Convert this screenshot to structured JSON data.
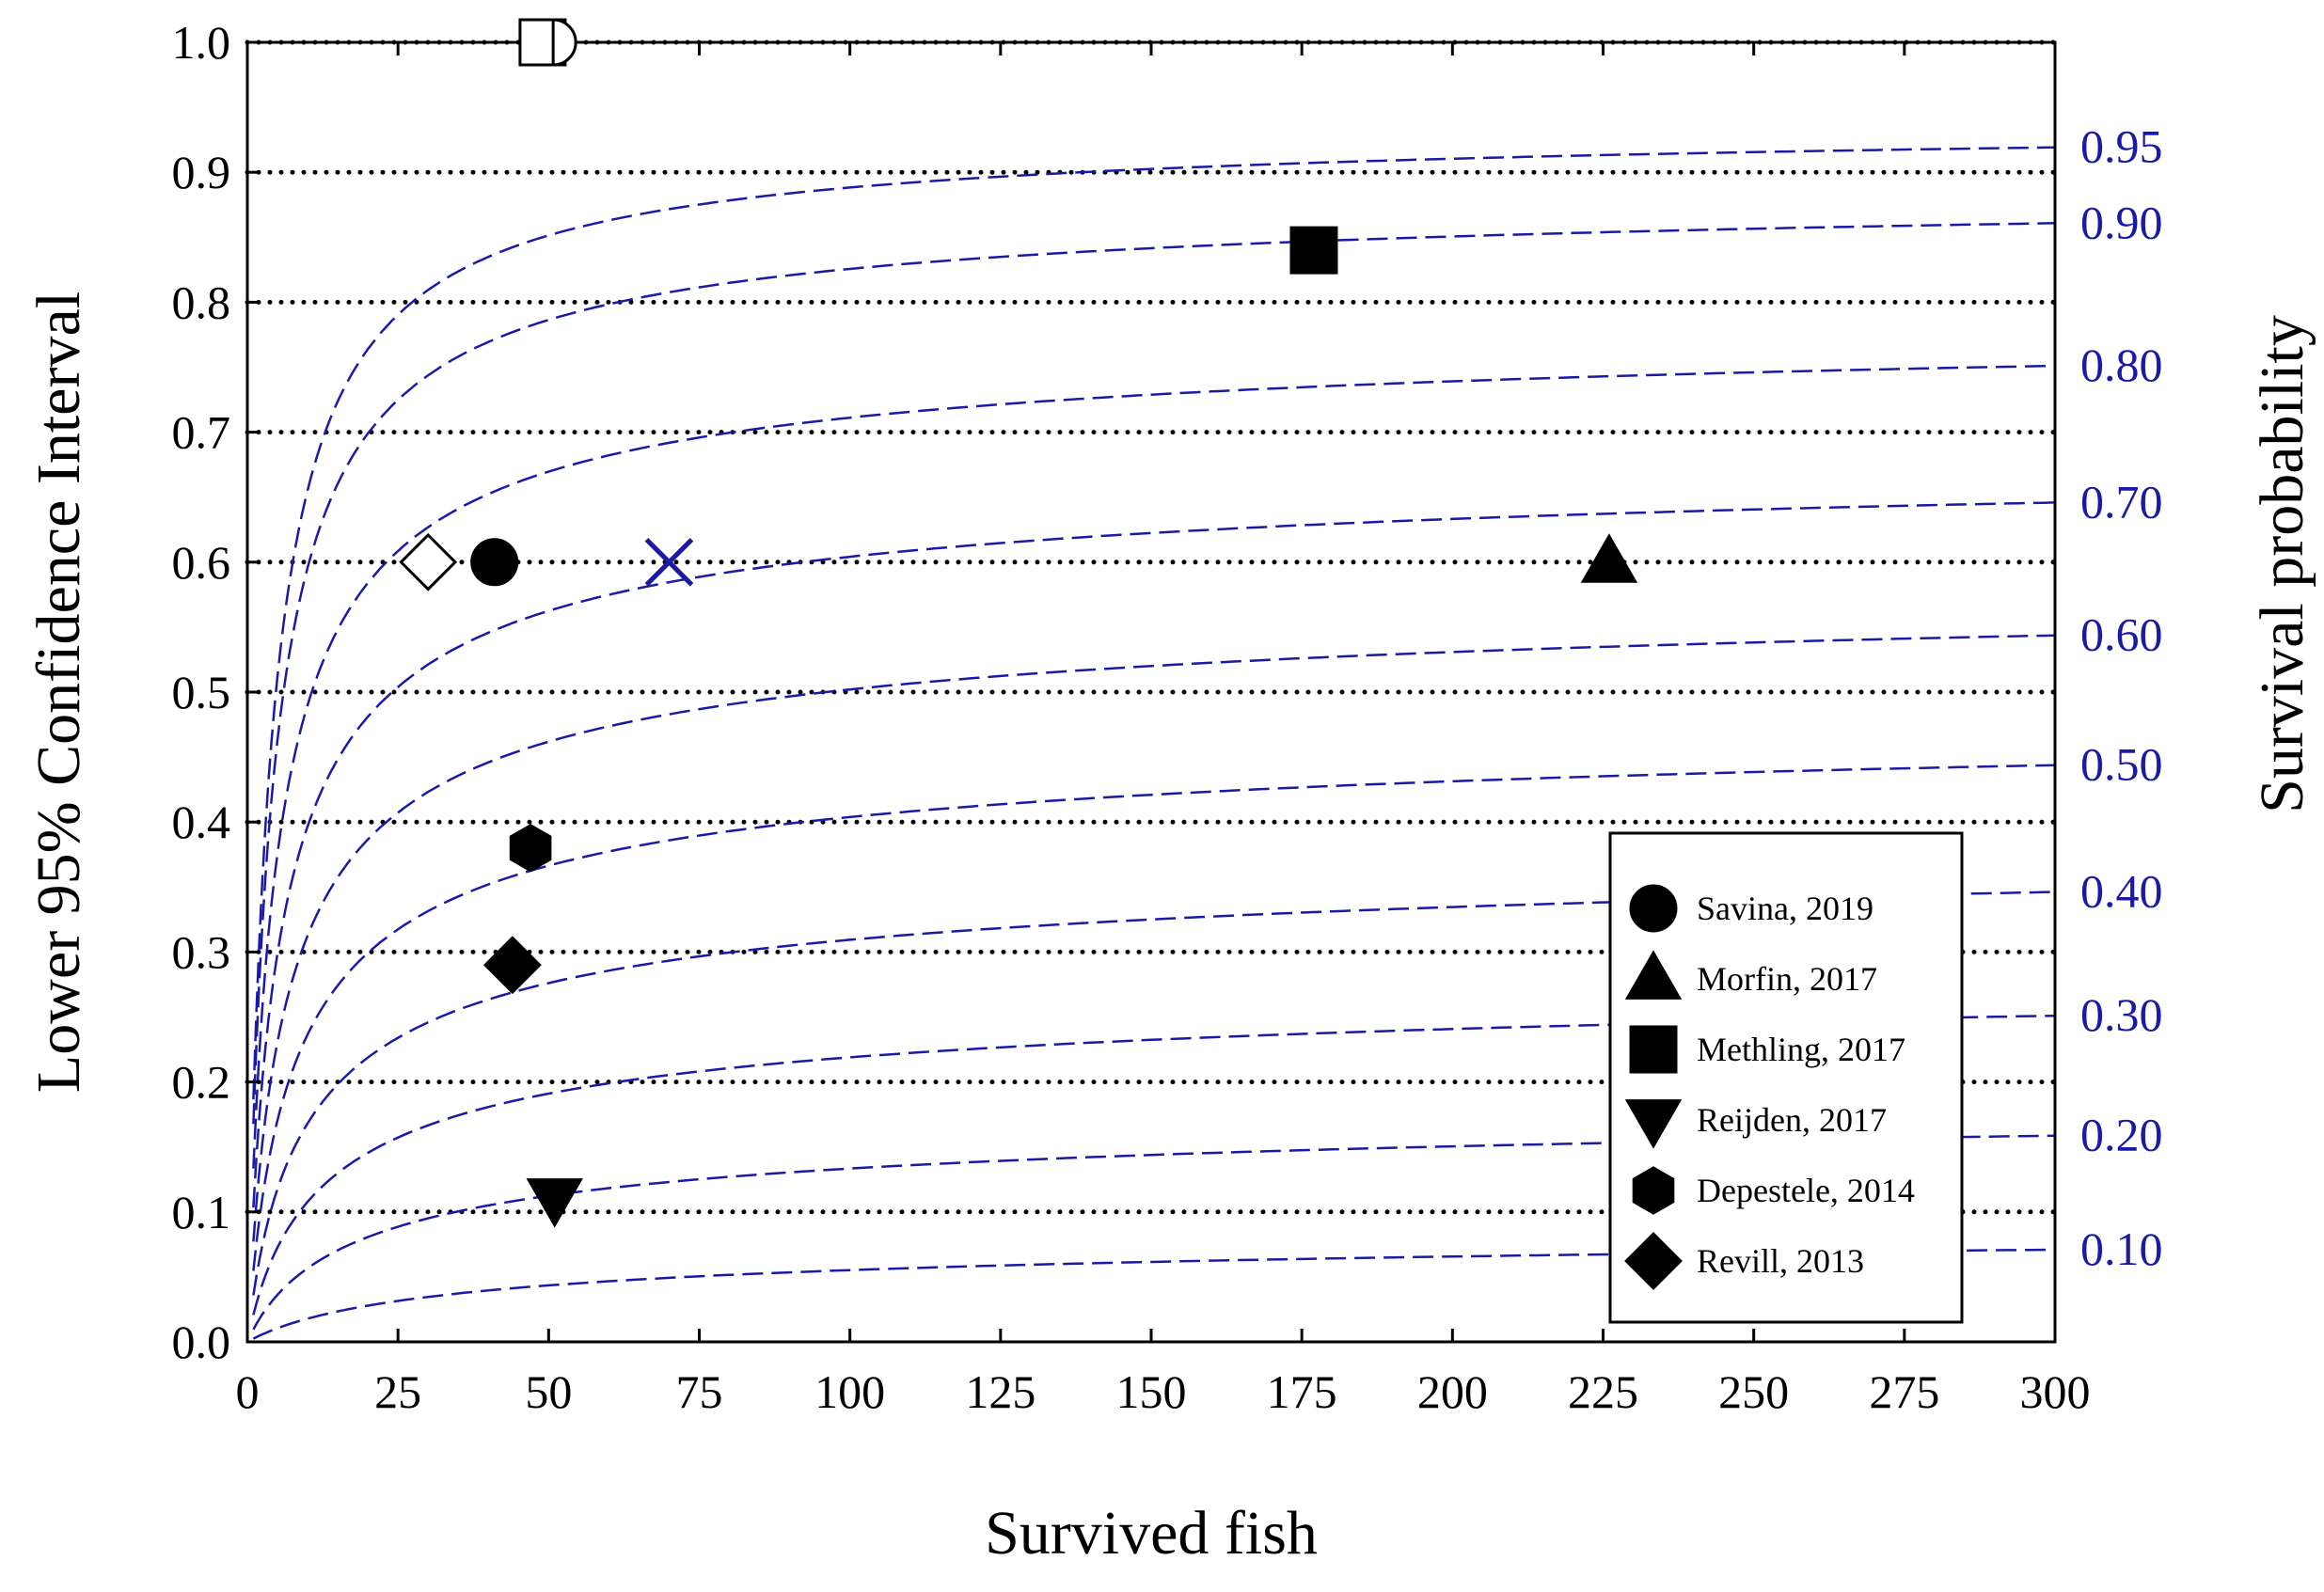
{
  "chart_data": {
    "type": "line",
    "title": "",
    "xlabel": "Survived fish",
    "ylabel": "Lower 95% Confidence Interval",
    "y2label": "Survival probability",
    "xlim": [
      0,
      300
    ],
    "ylim": [
      0,
      1.0
    ],
    "xticks": [
      0,
      25,
      50,
      75,
      100,
      125,
      150,
      175,
      200,
      225,
      250,
      275,
      300
    ],
    "yticks": [
      "0.0",
      "0.1",
      "0.2",
      "0.3",
      "0.4",
      "0.5",
      "0.6",
      "0.7",
      "0.8",
      "0.9",
      "1.0"
    ],
    "curve_color": "#1a1aa6",
    "grid_color": "#000000",
    "survival_curves": [
      {
        "label": "0.10",
        "p": 0.1
      },
      {
        "label": "0.20",
        "p": 0.2
      },
      {
        "label": "0.30",
        "p": 0.3
      },
      {
        "label": "0.40",
        "p": 0.4
      },
      {
        "label": "0.50",
        "p": 0.5
      },
      {
        "label": "0.60",
        "p": 0.6
      },
      {
        "label": "0.70",
        "p": 0.7
      },
      {
        "label": "0.80",
        "p": 0.8
      },
      {
        "label": "0.90",
        "p": 0.9
      },
      {
        "label": "0.95",
        "p": 0.95
      }
    ],
    "points": [
      {
        "study": "Savina, 2019",
        "marker": "circle",
        "x": 41,
        "y": 0.6,
        "filled": true,
        "in_legend": true
      },
      {
        "study": "Morfin, 2017",
        "marker": "triangle-up",
        "x": 226,
        "y": 0.6,
        "filled": true,
        "in_legend": true
      },
      {
        "study": "Methling, 2017",
        "marker": "square",
        "x": 177,
        "y": 0.84,
        "filled": true,
        "in_legend": true
      },
      {
        "study": "Reijden, 2017",
        "marker": "triangle-down",
        "x": 51,
        "y": 0.11,
        "filled": true,
        "in_legend": true
      },
      {
        "study": "Depestele, 2014",
        "marker": "hexagon",
        "x": 47,
        "y": 0.38,
        "filled": true,
        "in_legend": true
      },
      {
        "study": "Revill, 2013",
        "marker": "diamond",
        "x": 44,
        "y": 0.29,
        "filled": true,
        "in_legend": true
      },
      {
        "study": "",
        "marker": "diamond",
        "x": 30,
        "y": 0.6,
        "filled": false,
        "in_legend": false
      },
      {
        "study": "",
        "marker": "x",
        "x": 70,
        "y": 0.6,
        "filled": false,
        "in_legend": false
      },
      {
        "study": "",
        "marker": "square",
        "x": 49,
        "y": 1.0,
        "filled": false,
        "in_legend": false
      },
      {
        "study": "",
        "marker": "half-circle",
        "x": 53,
        "y": 1.0,
        "filled": false,
        "in_legend": false
      }
    ],
    "legend_position": "bottom-right"
  }
}
